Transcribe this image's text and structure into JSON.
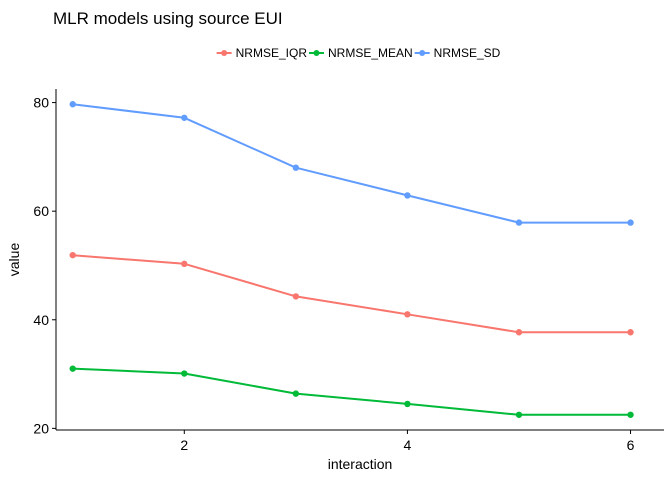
{
  "chart_data": {
    "type": "line",
    "title": "MLR models using source EUI",
    "xlabel": "interaction",
    "ylabel": "value",
    "x": [
      1,
      2,
      3,
      4,
      5,
      6
    ],
    "xlim": [
      0.85,
      6.3
    ],
    "ylim": [
      19.7,
      82.5
    ],
    "x_ticks": [
      2,
      4,
      6
    ],
    "y_ticks": [
      20,
      40,
      60,
      80
    ],
    "grid": false,
    "legend_position": "top",
    "series": [
      {
        "name": "NRMSE_IQR",
        "color": "#F8766D",
        "values": [
          51.9,
          50.3,
          44.3,
          41.0,
          37.7,
          37.7
        ]
      },
      {
        "name": "NRMSE_MEAN",
        "color": "#00BA38",
        "values": [
          31.0,
          30.1,
          26.4,
          24.5,
          22.5,
          22.5
        ]
      },
      {
        "name": "NRMSE_SD",
        "color": "#619CFF",
        "values": [
          79.7,
          77.2,
          68.0,
          62.9,
          57.9,
          57.9
        ]
      }
    ]
  }
}
